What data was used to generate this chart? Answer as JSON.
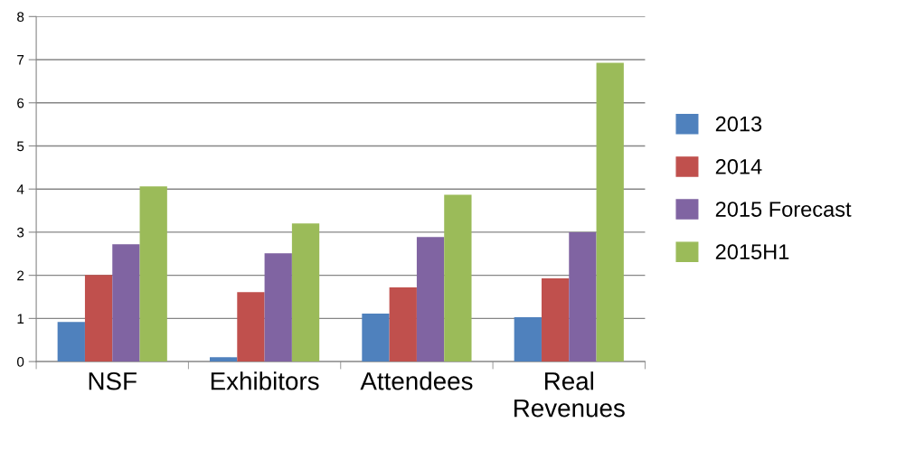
{
  "chart_data": {
    "type": "bar",
    "categories": [
      "NSF",
      "Exhibitors",
      "Attendees",
      "Real\nRevenues"
    ],
    "series": [
      {
        "name": "2013",
        "color": "#4f81bd",
        "values": [
          0.92,
          0.1,
          1.11,
          1.03
        ]
      },
      {
        "name": "2014",
        "color": "#c0504d",
        "values": [
          2.01,
          1.61,
          1.72,
          1.93
        ]
      },
      {
        "name": "2015 Forecast",
        "color": "#8064a2",
        "values": [
          2.72,
          2.51,
          2.89,
          3.0
        ]
      },
      {
        "name": "2015H1",
        "color": "#9bbb59",
        "values": [
          4.06,
          3.2,
          3.87,
          6.93
        ]
      }
    ],
    "ylim": [
      0,
      8
    ],
    "yticks": [
      0,
      1,
      2,
      3,
      4,
      5,
      6,
      7,
      8
    ],
    "grid": "y",
    "legend": "right"
  }
}
